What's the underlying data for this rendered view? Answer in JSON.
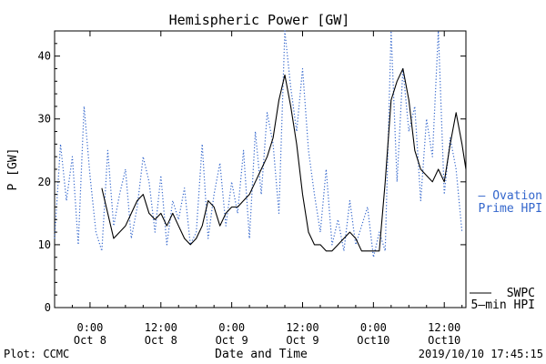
{
  "chart_data": {
    "type": "line",
    "title": "Hemispheric Power [GW]",
    "xlabel": "Date and Time",
    "ylabel": "P [GW]",
    "ylim": [
      0,
      44
    ],
    "xlim": [
      "2019-10-07 18:00",
      "2019-10-10 15:40"
    ],
    "grid": false,
    "legend_position": "right",
    "yticks": [
      0,
      10,
      20,
      30,
      40
    ],
    "xticks": [
      {
        "x": "2019-10-08 00:00",
        "label": [
          "0:00",
          "Oct 8"
        ]
      },
      {
        "x": "2019-10-08 12:00",
        "label": [
          "12:00",
          "Oct 8"
        ]
      },
      {
        "x": "2019-10-09 00:00",
        "label": [
          "0:00",
          "Oct 9"
        ]
      },
      {
        "x": "2019-10-09 12:00",
        "label": [
          "12:00",
          "Oct 9"
        ]
      },
      {
        "x": "2019-10-10 00:00",
        "label": [
          "0:00",
          "Oct10"
        ]
      },
      {
        "x": "2019-10-10 12:00",
        "label": [
          "12:00",
          "Oct10"
        ]
      }
    ],
    "series": [
      {
        "name": "Ovation Prime HPI",
        "style": "dotted",
        "color": "#3366cc",
        "legend": [
          "– Ovation",
          "Prime HPI"
        ],
        "x": [
          "2019-10-07 18:00",
          "2019-10-07 19:00",
          "2019-10-07 20:00",
          "2019-10-07 21:00",
          "2019-10-07 22:00",
          "2019-10-07 23:00",
          "2019-10-08 00:00",
          "2019-10-08 01:00",
          "2019-10-08 02:00",
          "2019-10-08 03:00",
          "2019-10-08 04:00",
          "2019-10-08 05:00",
          "2019-10-08 06:00",
          "2019-10-08 07:00",
          "2019-10-08 08:00",
          "2019-10-08 09:00",
          "2019-10-08 10:00",
          "2019-10-08 11:00",
          "2019-10-08 12:00",
          "2019-10-08 13:00",
          "2019-10-08 14:00",
          "2019-10-08 15:00",
          "2019-10-08 16:00",
          "2019-10-08 17:00",
          "2019-10-08 18:00",
          "2019-10-08 19:00",
          "2019-10-08 20:00",
          "2019-10-08 21:00",
          "2019-10-08 22:00",
          "2019-10-08 23:00",
          "2019-10-09 00:00",
          "2019-10-09 01:00",
          "2019-10-09 02:00",
          "2019-10-09 03:00",
          "2019-10-09 04:00",
          "2019-10-09 05:00",
          "2019-10-09 06:00",
          "2019-10-09 07:00",
          "2019-10-09 08:00",
          "2019-10-09 09:00",
          "2019-10-09 10:00",
          "2019-10-09 11:00",
          "2019-10-09 12:00",
          "2019-10-09 13:00",
          "2019-10-09 14:00",
          "2019-10-09 15:00",
          "2019-10-09 16:00",
          "2019-10-09 17:00",
          "2019-10-09 18:00",
          "2019-10-09 19:00",
          "2019-10-09 20:00",
          "2019-10-09 21:00",
          "2019-10-09 22:00",
          "2019-10-09 23:00",
          "2019-10-10 00:00",
          "2019-10-10 01:00",
          "2019-10-10 02:00",
          "2019-10-10 03:00",
          "2019-10-10 04:00",
          "2019-10-10 05:00",
          "2019-10-10 06:00",
          "2019-10-10 07:00",
          "2019-10-10 08:00",
          "2019-10-10 09:00",
          "2019-10-10 10:00",
          "2019-10-10 11:00",
          "2019-10-10 12:00",
          "2019-10-10 13:00",
          "2019-10-10 14:00",
          "2019-10-10 15:00"
        ],
        "y": [
          11,
          26,
          17,
          24,
          10,
          32,
          21,
          12,
          9,
          25,
          13,
          18,
          22,
          11,
          16,
          24,
          20,
          12,
          21,
          10,
          17,
          14,
          19,
          10,
          12,
          26,
          11,
          18,
          23,
          13,
          20,
          15,
          25,
          11,
          28,
          18,
          31,
          26,
          15,
          44,
          35,
          28,
          38,
          25,
          18,
          12,
          22,
          10,
          14,
          9,
          17,
          10,
          13,
          16,
          8,
          12,
          9,
          44,
          20,
          38,
          28,
          32,
          17,
          30,
          24,
          44,
          18,
          27,
          22,
          12
        ]
      },
      {
        "name": "SWPC 5-min HPI",
        "style": "solid",
        "color": "#000000",
        "legend": [
          "SWPC",
          "5–min HPI"
        ],
        "x": [
          "2019-10-08 02:00",
          "2019-10-08 03:00",
          "2019-10-08 04:00",
          "2019-10-08 05:00",
          "2019-10-08 06:00",
          "2019-10-08 07:00",
          "2019-10-08 08:00",
          "2019-10-08 09:00",
          "2019-10-08 10:00",
          "2019-10-08 11:00",
          "2019-10-08 12:00",
          "2019-10-08 13:00",
          "2019-10-08 14:00",
          "2019-10-08 15:00",
          "2019-10-08 16:00",
          "2019-10-08 17:00",
          "2019-10-08 18:00",
          "2019-10-08 19:00",
          "2019-10-08 20:00",
          "2019-10-08 21:00",
          "2019-10-08 22:00",
          "2019-10-08 23:00",
          "2019-10-09 00:00",
          "2019-10-09 01:00",
          "2019-10-09 02:00",
          "2019-10-09 03:00",
          "2019-10-09 04:00",
          "2019-10-09 05:00",
          "2019-10-09 06:00",
          "2019-10-09 07:00",
          "2019-10-09 08:00",
          "2019-10-09 09:00",
          "2019-10-09 10:00",
          "2019-10-09 11:00",
          "2019-10-09 12:00",
          "2019-10-09 13:00",
          "2019-10-09 14:00",
          "2019-10-09 15:00",
          "2019-10-09 16:00",
          "2019-10-09 17:00",
          "2019-10-09 18:00",
          "2019-10-09 19:00",
          "2019-10-09 20:00",
          "2019-10-09 21:00",
          "2019-10-09 22:00",
          "2019-10-09 23:00",
          "2019-10-10 00:00",
          "2019-10-10 01:00",
          "2019-10-10 02:00",
          "2019-10-10 03:00",
          "2019-10-10 04:00",
          "2019-10-10 05:00",
          "2019-10-10 06:00",
          "2019-10-10 07:00",
          "2019-10-10 08:00",
          "2019-10-10 09:00",
          "2019-10-10 10:00",
          "2019-10-10 11:00",
          "2019-10-10 12:00",
          "2019-10-10 13:00",
          "2019-10-10 14:00",
          "2019-10-10 15:00",
          "2019-10-10 15:40"
        ],
        "y": [
          19,
          15,
          11,
          12,
          13,
          15,
          17,
          18,
          15,
          14,
          15,
          13,
          15,
          13,
          11,
          10,
          11,
          13,
          17,
          16,
          13,
          15,
          16,
          16,
          17,
          18,
          20,
          22,
          24,
          27,
          33,
          37,
          32,
          26,
          18,
          12,
          10,
          10,
          9,
          9,
          10,
          11,
          12,
          11,
          9,
          9,
          9,
          9,
          20,
          33,
          36,
          38,
          33,
          25,
          22,
          21,
          20,
          22,
          20,
          26,
          31,
          26,
          22
        ]
      }
    ]
  },
  "footer": {
    "left": "Plot: CCMC",
    "right": "2019/10/10 17:45:15"
  }
}
